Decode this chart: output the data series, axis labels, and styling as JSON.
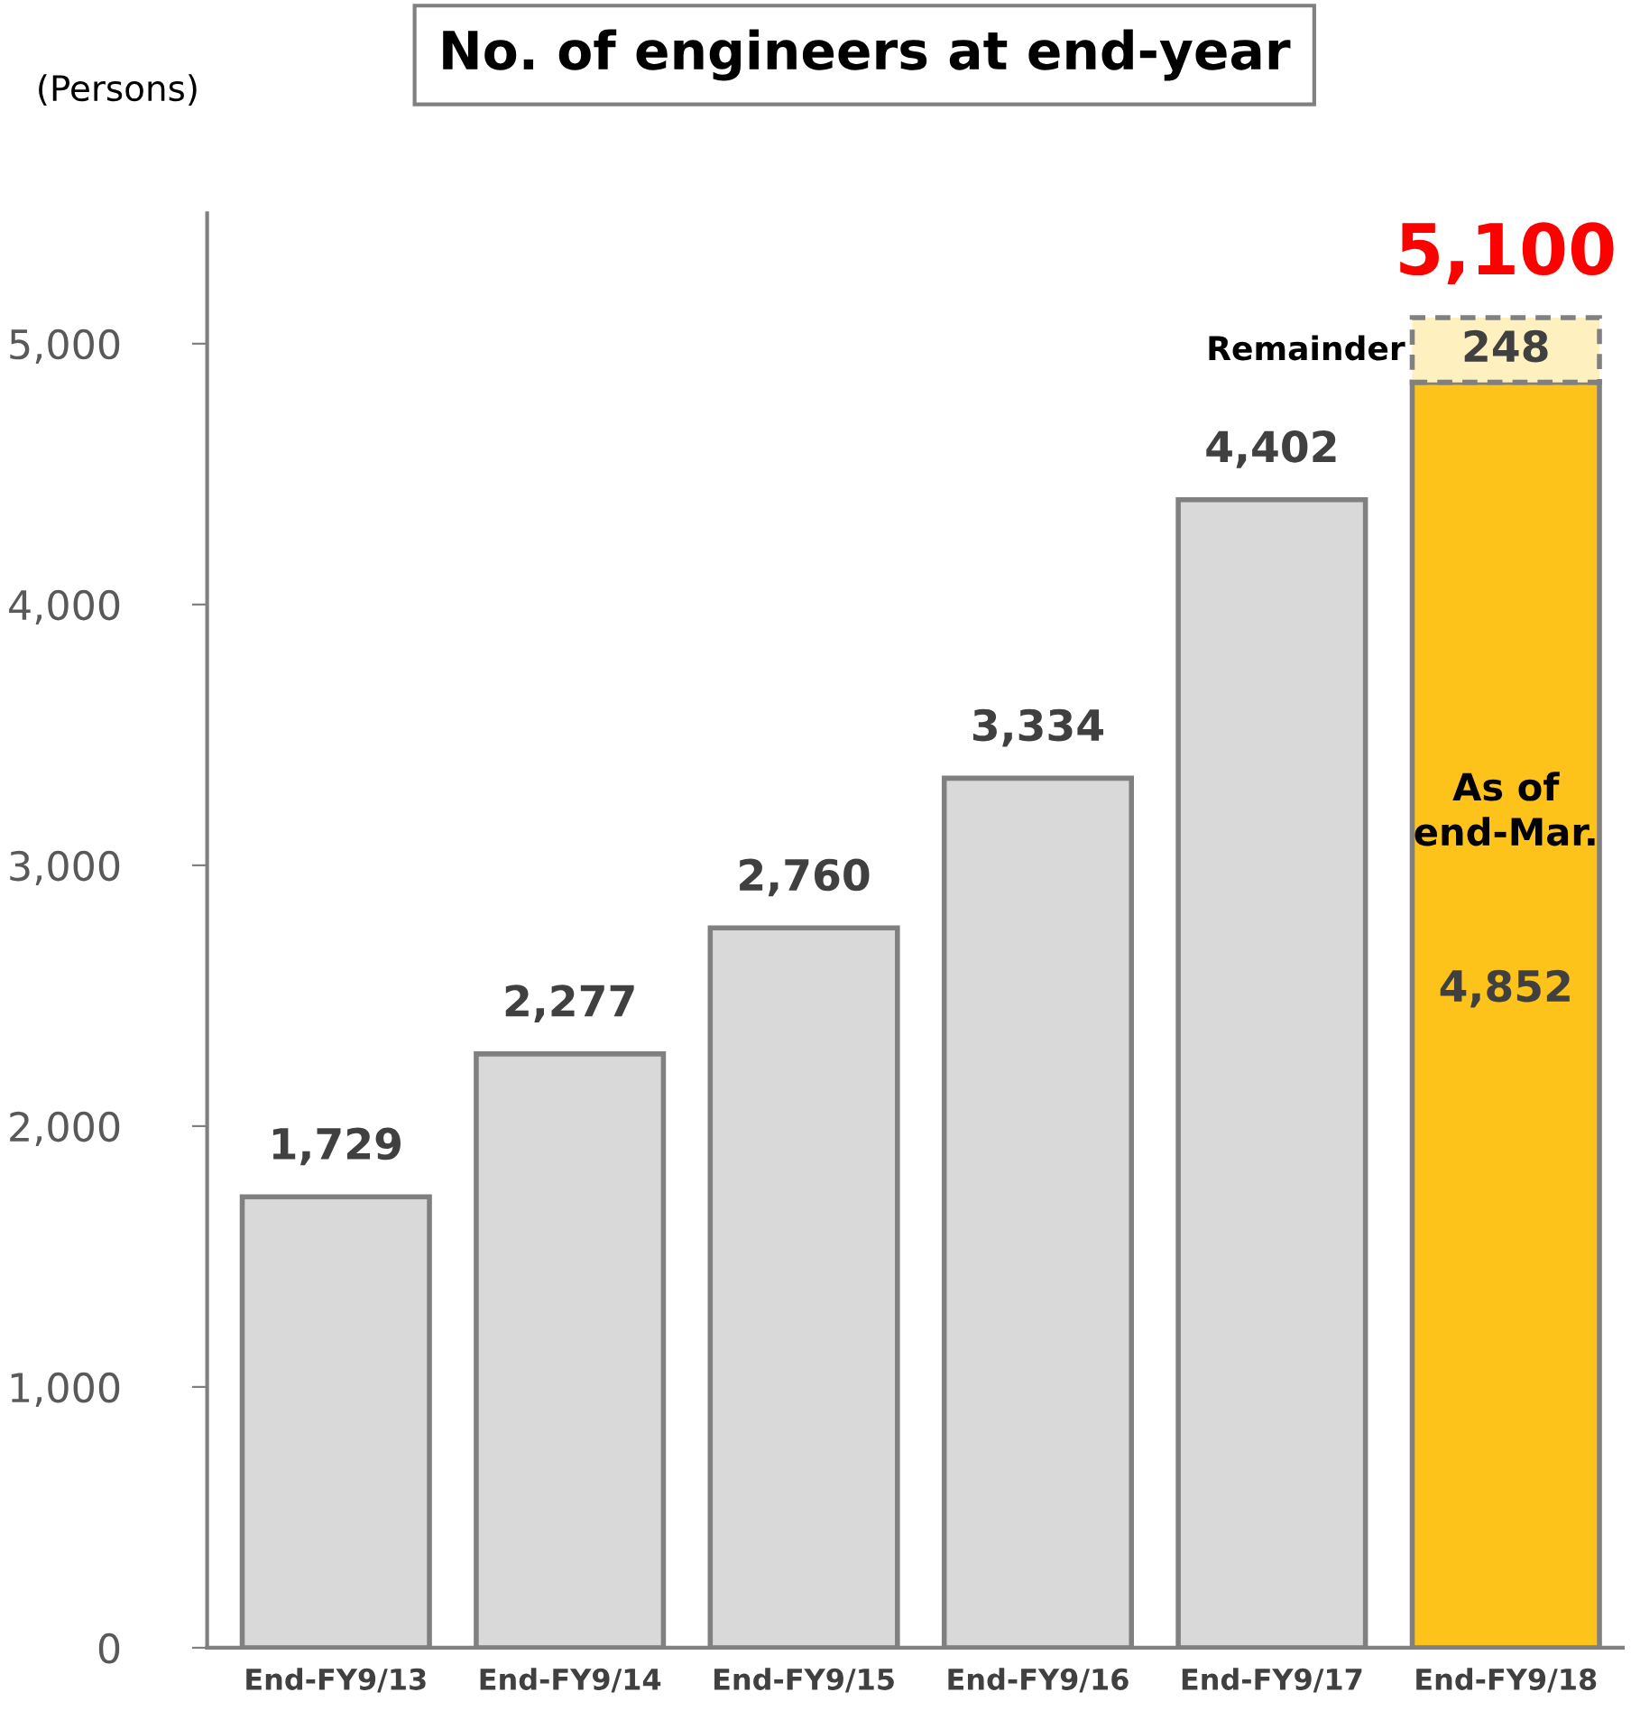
{
  "chart_data": {
    "type": "bar",
    "title": "No. of engineers at end-year",
    "ylabel": "(Persons)",
    "categories": [
      "End-FY9/13",
      "End-FY9/14",
      "End-FY9/15",
      "End-FY9/16",
      "End-FY9/17",
      "End-FY9/18"
    ],
    "stacked": true,
    "series": [
      {
        "colors": [
          "#d9d9d9",
          "#d9d9d9",
          "#d9d9d9",
          "#d9d9d9",
          "#d9d9d9",
          "#fdc31a"
        ],
        "values": [
          1729,
          2277,
          2760,
          3334,
          4402,
          4852
        ],
        "value_labels": [
          "1,729",
          "2,277",
          "2,760",
          "3,334",
          "4,402",
          "4,852"
        ]
      },
      {
        "colors": [
          null,
          null,
          null,
          null,
          null,
          "#fff0bf"
        ],
        "values": [
          null,
          null,
          null,
          null,
          null,
          248
        ],
        "value_labels": [
          null,
          null,
          null,
          null,
          null,
          "248"
        ],
        "line_style": "dashed"
      }
    ],
    "totals": [
      null,
      null,
      null,
      null,
      null,
      "5,100"
    ],
    "annotations": [
      "Remainder",
      "As of\nend-Mar."
    ],
    "ylim": [
      0,
      5500
    ],
    "yticks": [
      {
        "value": 0,
        "label": "0"
      },
      {
        "value": 1000,
        "label": "1,000"
      },
      {
        "value": 2000,
        "label": "2,000"
      },
      {
        "value": 3000,
        "label": "3,000"
      },
      {
        "value": 4000,
        "label": "4,000"
      },
      {
        "value": 5000,
        "label": "5,000"
      }
    ],
    "grid": false,
    "legend": false
  }
}
